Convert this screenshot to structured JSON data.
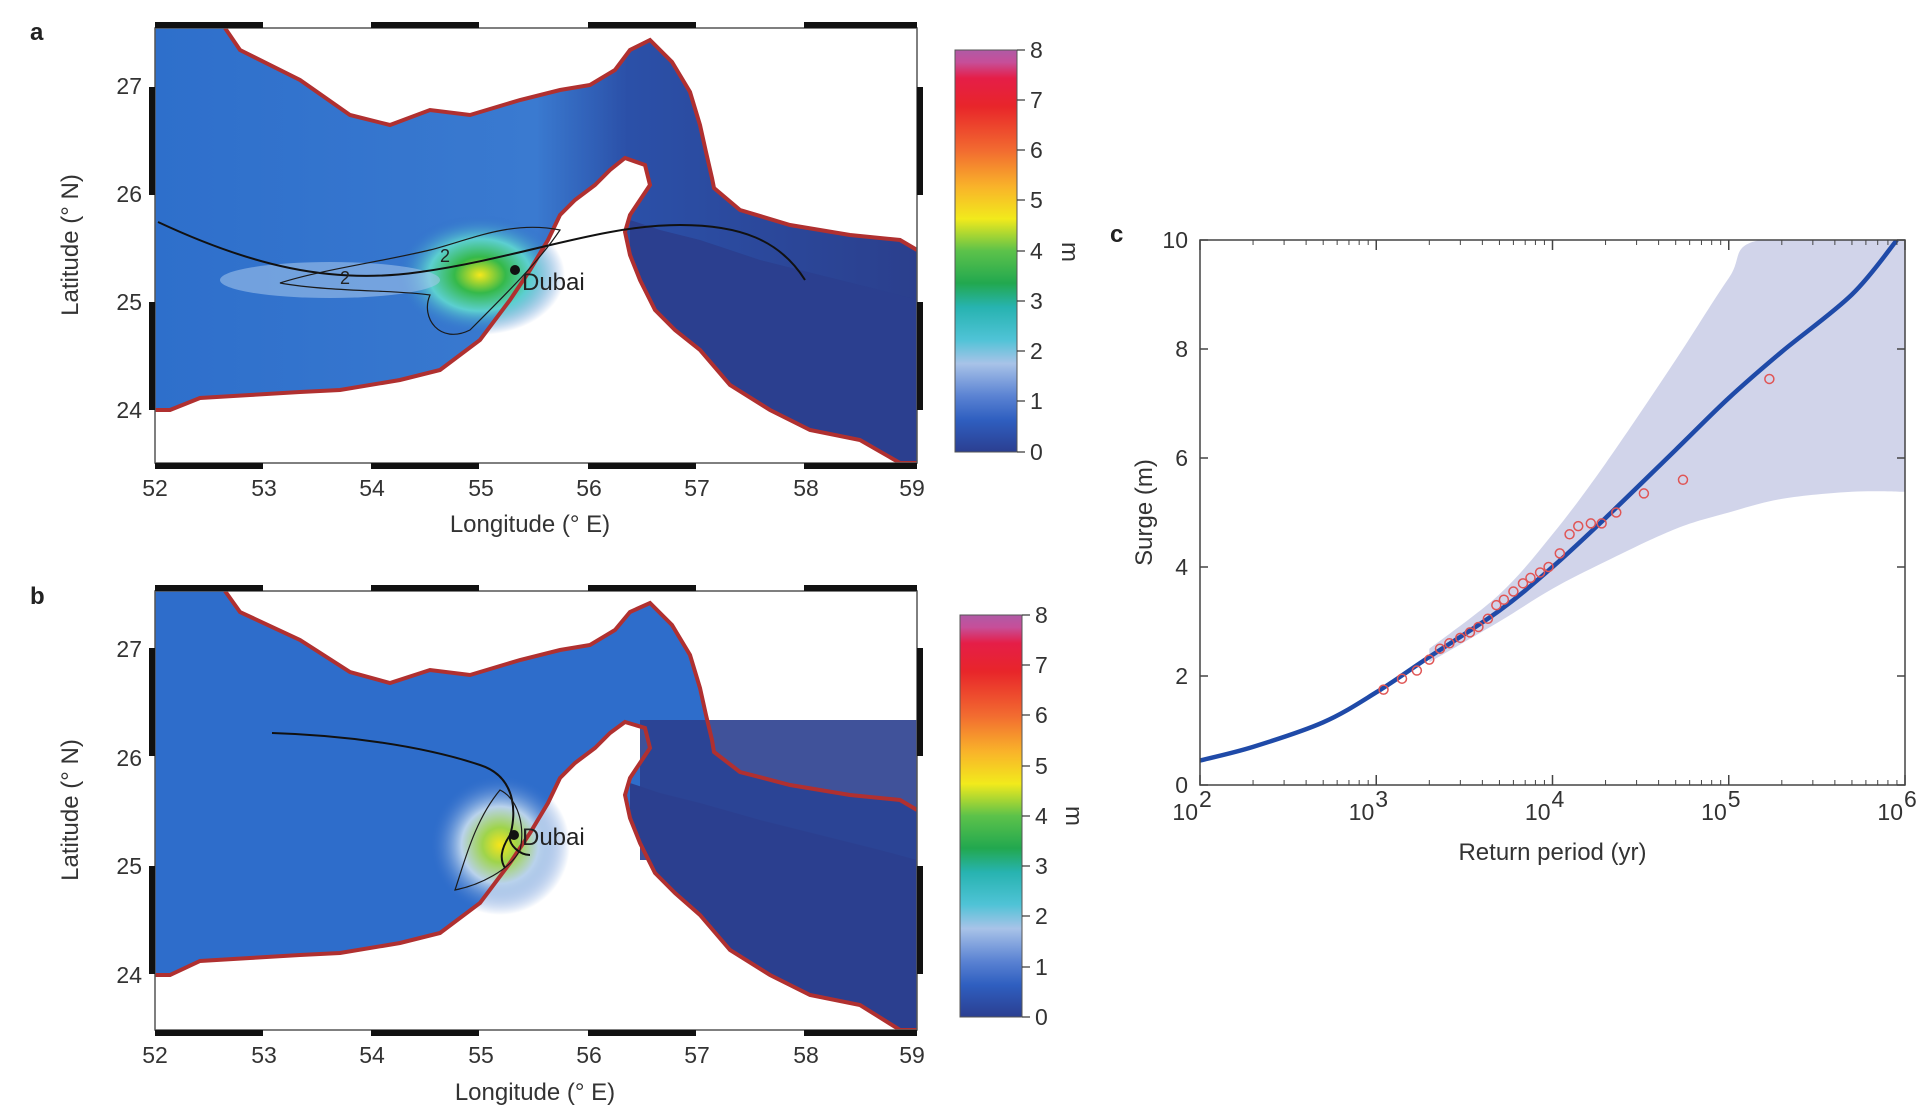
{
  "panels": {
    "a": "a",
    "b": "b",
    "c": "c"
  },
  "maps": {
    "xlabel": "Longitude (° E)",
    "ylabel": "Latitude (° N)",
    "lon_ticks": [
      "52",
      "53",
      "54",
      "55",
      "56",
      "57",
      "58",
      "59"
    ],
    "lat_ticks": [
      "27",
      "26",
      "25",
      "24"
    ],
    "city": "Dubai",
    "contour_label": "2",
    "colorbar": {
      "label": "m",
      "ticks": [
        "8",
        "7",
        "6",
        "5",
        "4",
        "3",
        "2",
        "1",
        "0"
      ]
    },
    "colors": {
      "sea_low": "#2d3f8f",
      "sea_mid": "#2e6ac9",
      "land": "#ffffff",
      "coast": "#b03030",
      "track": "#111111"
    }
  },
  "chart_data": {
    "type": "scatter",
    "xlabel": "Return period (yr)",
    "ylabel": "Surge (m)",
    "x_scale": "log",
    "xlim": [
      100,
      1000000
    ],
    "ylim": [
      0,
      10
    ],
    "x_ticks": [
      {
        "base": "10",
        "exp": "2"
      },
      {
        "base": "10",
        "exp": "3"
      },
      {
        "base": "10",
        "exp": "4"
      },
      {
        "base": "10",
        "exp": "5"
      },
      {
        "base": "10",
        "exp": "6"
      }
    ],
    "y_ticks": [
      "0",
      "2",
      "4",
      "6",
      "8",
      "10"
    ],
    "fit": {
      "color": "#1f4aa8",
      "points": [
        [
          100,
          0.45
        ],
        [
          200,
          0.7
        ],
        [
          500,
          1.15
        ],
        [
          1000,
          1.7
        ],
        [
          2000,
          2.35
        ],
        [
          5000,
          3.2
        ],
        [
          10000,
          4.0
        ],
        [
          20000,
          4.9
        ],
        [
          50000,
          6.15
        ],
        [
          100000,
          7.1
        ],
        [
          200000,
          7.95
        ],
        [
          500000,
          9.0
        ],
        [
          900000,
          10.0
        ]
      ]
    },
    "confidence_band": {
      "color": "#c9cce6",
      "upper": [
        [
          2000,
          2.5
        ],
        [
          5000,
          3.5
        ],
        [
          10000,
          4.6
        ],
        [
          20000,
          5.9
        ],
        [
          50000,
          7.8
        ],
        [
          100000,
          9.3
        ],
        [
          150000,
          10.0
        ],
        [
          1000000,
          10.0
        ]
      ],
      "lower": [
        [
          2000,
          2.25
        ],
        [
          5000,
          3.0
        ],
        [
          10000,
          3.6
        ],
        [
          20000,
          4.1
        ],
        [
          50000,
          4.7
        ],
        [
          100000,
          5.0
        ],
        [
          200000,
          5.25
        ],
        [
          500000,
          5.38
        ],
        [
          1000000,
          5.38
        ]
      ]
    },
    "observations": {
      "color": "#e05555",
      "x": [
        1100,
        1400,
        1700,
        2000,
        2300,
        2600,
        3000,
        3400,
        3800,
        4300,
        4800,
        5300,
        6000,
        6800,
        7500,
        8500,
        9500,
        11000,
        12500,
        14000,
        16500,
        19000,
        23000,
        33000,
        55000,
        170000
      ],
      "y": [
        1.75,
        1.95,
        2.1,
        2.3,
        2.5,
        2.6,
        2.7,
        2.8,
        2.9,
        3.05,
        3.3,
        3.4,
        3.55,
        3.7,
        3.8,
        3.9,
        4.0,
        4.25,
        4.6,
        4.75,
        4.8,
        4.8,
        5.0,
        5.35,
        5.6,
        7.45
      ]
    }
  }
}
